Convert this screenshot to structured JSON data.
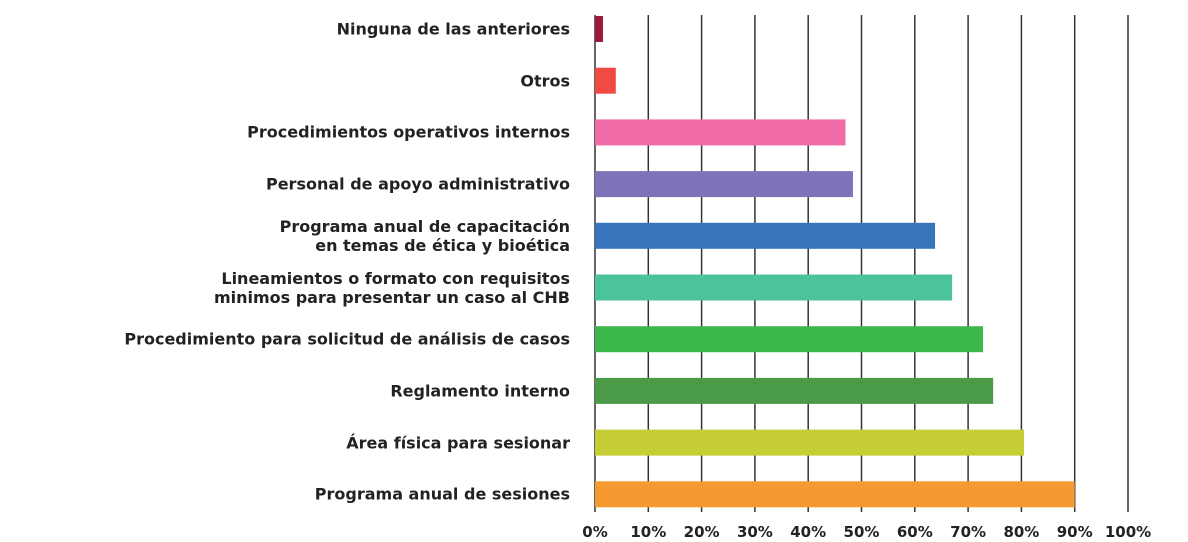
{
  "chart_data": {
    "type": "bar",
    "orientation": "horizontal",
    "categories": [
      "Ninguna de las anteriores",
      "Otros",
      "Procedimientos operativos internos",
      "Personal de apoyo administrativo",
      "Programa anual de capacitación\nen temas de ética y bioética",
      "Lineamientos o formato con requisitos\nminimos para presentar un caso al CHB",
      "Procedimiento para solicitud de análisis de casos",
      "Reglamento interno",
      "Área física para sesionar",
      "Programa anual de sesiones"
    ],
    "values": [
      1.5,
      3.9,
      47,
      48.4,
      63.8,
      67,
      72.8,
      74.7,
      80.5,
      90
    ],
    "colors": [
      "#9b1c3a",
      "#f04a42",
      "#f06aa6",
      "#7e73b8",
      "#3674bb",
      "#4bc39d",
      "#3db84b",
      "#4a9a47",
      "#c5ce35",
      "#f59a30"
    ],
    "xlim": [
      0,
      100
    ],
    "xticks": [
      {
        "value": 0,
        "label": "0%"
      },
      {
        "value": 10,
        "label": "10%"
      },
      {
        "value": 20,
        "label": "20%"
      },
      {
        "value": 30,
        "label": "30%"
      },
      {
        "value": 40,
        "label": "40%"
      },
      {
        "value": 50,
        "label": "50%"
      },
      {
        "value": 60,
        "label": "60%"
      },
      {
        "value": 70,
        "label": "70%"
      },
      {
        "value": 80,
        "label": "80%"
      },
      {
        "value": 90,
        "label": "90%"
      },
      {
        "value": 100,
        "label": "100%"
      }
    ],
    "grid": true
  }
}
